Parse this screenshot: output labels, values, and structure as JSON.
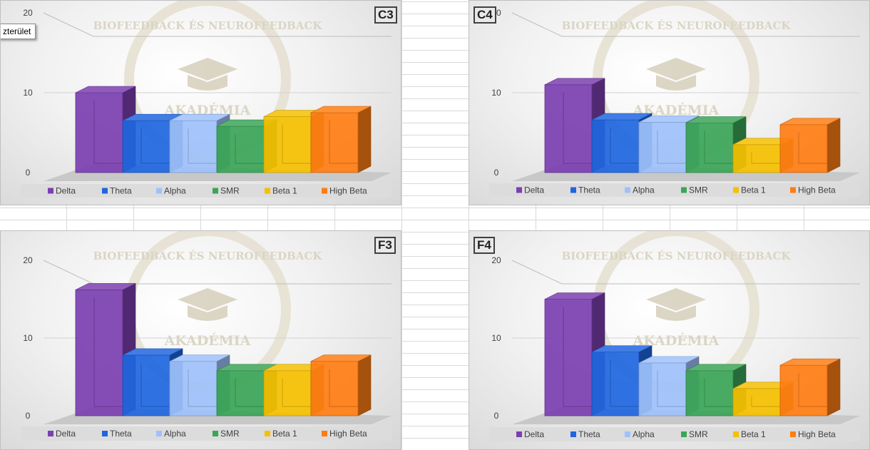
{
  "tooltip_text": "zterület",
  "legend": [
    {
      "name": "Delta",
      "color": "#7b3fb0"
    },
    {
      "name": "Theta",
      "color": "#1f66e0"
    },
    {
      "name": "Alpha",
      "color": "#9ec1fb"
    },
    {
      "name": "SMR",
      "color": "#3ba557"
    },
    {
      "name": "Beta 1",
      "color": "#f5c000"
    },
    {
      "name": "High Beta",
      "color": "#ff7d12"
    }
  ],
  "watermark": {
    "top": "BIOFEEDBACK ÉS NEUROFEEDBACK",
    "bottom": "AKADÉMIA"
  },
  "chart_data": [
    {
      "type": "bar",
      "title": "C3",
      "categories": [
        "Delta",
        "Theta",
        "Alpha",
        "SMR",
        "Beta 1",
        "High Beta"
      ],
      "values": [
        10,
        6.5,
        6.5,
        5.8,
        7,
        7.5
      ],
      "yticks": [
        0,
        10,
        20
      ],
      "ylim": [
        0,
        20
      ],
      "legend_position": "bottom"
    },
    {
      "type": "bar",
      "title": "C4",
      "categories": [
        "Delta",
        "Theta",
        "Alpha",
        "SMR",
        "Beta 1",
        "High Beta"
      ],
      "values": [
        11,
        6.6,
        6.3,
        6.2,
        3.5,
        6
      ],
      "yticks": [
        0,
        10,
        20
      ],
      "ylim": [
        0,
        20
      ],
      "legend_position": "bottom"
    },
    {
      "type": "bar",
      "title": "F3",
      "categories": [
        "Delta",
        "Theta",
        "Alpha",
        "SMR",
        "Beta 1",
        "High Beta"
      ],
      "values": [
        16.2,
        7.8,
        7,
        5.8,
        5.8,
        7
      ],
      "yticks": [
        0,
        10,
        20
      ],
      "ylim": [
        0,
        20
      ],
      "legend_position": "bottom"
    },
    {
      "type": "bar",
      "title": "F4",
      "categories": [
        "Delta",
        "Theta",
        "Alpha",
        "SMR",
        "Beta 1",
        "High Beta"
      ],
      "values": [
        15,
        8.2,
        6.8,
        5.8,
        3.5,
        6.5
      ],
      "yticks": [
        0,
        10,
        20
      ],
      "ylim": [
        0,
        20
      ],
      "legend_position": "bottom"
    }
  ]
}
